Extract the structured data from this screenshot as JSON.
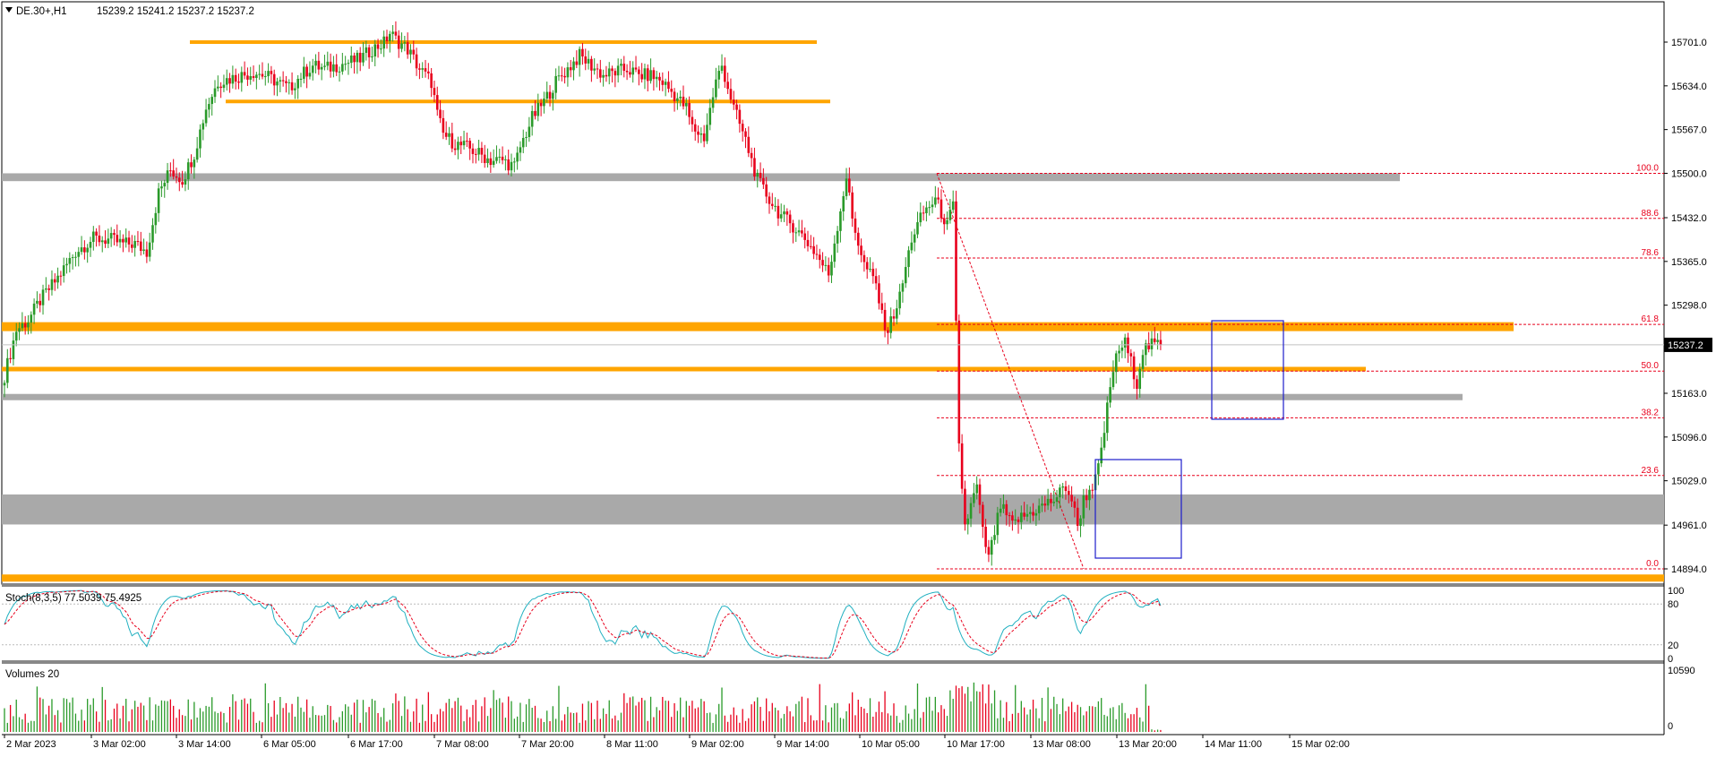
{
  "header": {
    "symbol": "DE.30+,H1",
    "ohlc": "15239.2 15241.2 15237.2 15237.2"
  },
  "price_panel": {
    "y_ticks": [
      "15701.0",
      "15634.0",
      "15567.0",
      "15500.0",
      "15432.0",
      "15365.0",
      "15298.0",
      "15163.0",
      "15096.0",
      "15029.0",
      "14961.0",
      "14894.0"
    ],
    "current_price": "15237.2",
    "fib_labels": [
      "100.0",
      "88.6",
      "78.6",
      "61.8",
      "50.0",
      "38.2",
      "23.6",
      "0.0"
    ]
  },
  "stoch_panel": {
    "label": "Stoch(8,3,5) 77.5039 75.4925",
    "y_ticks": [
      "100",
      "80",
      "20",
      "0"
    ]
  },
  "volume_panel": {
    "label": "Volumes 20",
    "y_ticks": [
      "10590",
      "0"
    ]
  },
  "x_axis": {
    "ticks": [
      "2 Mar 2023",
      "3 Mar 02:00",
      "3 Mar 14:00",
      "6 Mar 05:00",
      "6 Mar 17:00",
      "7 Mar 08:00",
      "7 Mar 20:00",
      "8 Mar 11:00",
      "9 Mar 02:00",
      "9 Mar 14:00",
      "10 Mar 05:00",
      "10 Mar 17:00",
      "13 Mar 08:00",
      "13 Mar 20:00",
      "14 Mar 11:00",
      "15 Mar 02:00"
    ]
  },
  "colors": {
    "bull": "#2a9a2a",
    "bear": "#e8001c",
    "orange_level": "#ffa500",
    "gray_zone": "#a9a9a9",
    "fib": "#e8001c",
    "box": "#1d1dcc",
    "stoch_main": "#20b0c0",
    "stoch_signal": "#e8001c"
  },
  "chart_data": {
    "type": "candlestick",
    "symbol": "DE.30+",
    "timeframe": "H1",
    "ylim": [
      14880,
      15770
    ],
    "current_price": 15237.2,
    "anchors": [
      [
        0,
        15190
      ],
      [
        4,
        15260
      ],
      [
        8,
        15275
      ],
      [
        12,
        15305
      ],
      [
        18,
        15340
      ],
      [
        24,
        15380
      ],
      [
        30,
        15400
      ],
      [
        36,
        15398
      ],
      [
        40,
        15392
      ],
      [
        44,
        15392
      ],
      [
        48,
        15380
      ],
      [
        52,
        15470
      ],
      [
        56,
        15505
      ],
      [
        60,
        15490
      ],
      [
        64,
        15530
      ],
      [
        68,
        15600
      ],
      [
        72,
        15640
      ],
      [
        76,
        15645
      ],
      [
        80,
        15650
      ],
      [
        84,
        15655
      ],
      [
        88,
        15650
      ],
      [
        92,
        15640
      ],
      [
        96,
        15630
      ],
      [
        100,
        15650
      ],
      [
        104,
        15665
      ],
      [
        108,
        15660
      ],
      [
        112,
        15665
      ],
      [
        116,
        15670
      ],
      [
        120,
        15675
      ],
      [
        124,
        15690
      ],
      [
        128,
        15700
      ],
      [
        130,
        15715
      ],
      [
        132,
        15705
      ],
      [
        136,
        15690
      ],
      [
        140,
        15660
      ],
      [
        144,
        15640
      ],
      [
        146,
        15590
      ],
      [
        148,
        15560
      ],
      [
        152,
        15545
      ],
      [
        156,
        15540
      ],
      [
        160,
        15530
      ],
      [
        164,
        15520
      ],
      [
        168,
        15520
      ],
      [
        172,
        15510
      ],
      [
        174,
        15540
      ],
      [
        178,
        15585
      ],
      [
        182,
        15610
      ],
      [
        186,
        15640
      ],
      [
        190,
        15660
      ],
      [
        194,
        15680
      ],
      [
        198,
        15665
      ],
      [
        202,
        15650
      ],
      [
        206,
        15655
      ],
      [
        210,
        15660
      ],
      [
        214,
        15650
      ],
      [
        218,
        15650
      ],
      [
        222,
        15640
      ],
      [
        226,
        15620
      ],
      [
        230,
        15600
      ],
      [
        232,
        15570
      ],
      [
        236,
        15555
      ],
      [
        240,
        15640
      ],
      [
        242,
        15665
      ],
      [
        246,
        15600
      ],
      [
        250,
        15550
      ],
      [
        254,
        15490
      ],
      [
        258,
        15460
      ],
      [
        262,
        15435
      ],
      [
        266,
        15420
      ],
      [
        270,
        15400
      ],
      [
        274,
        15375
      ],
      [
        278,
        15345
      ],
      [
        282,
        15445
      ],
      [
        284,
        15495
      ],
      [
        286,
        15430
      ],
      [
        290,
        15360
      ],
      [
        294,
        15330
      ],
      [
        296,
        15280
      ],
      [
        298,
        15260
      ],
      [
        302,
        15310
      ],
      [
        306,
        15400
      ],
      [
        310,
        15440
      ],
      [
        314,
        15460
      ],
      [
        318,
        15420
      ],
      [
        320,
        15450
      ],
      [
        322,
        15080
      ],
      [
        324,
        14960
      ],
      [
        326,
        14990
      ],
      [
        328,
        15020
      ],
      [
        330,
        14950
      ],
      [
        332,
        14910
      ],
      [
        336,
        14990
      ],
      [
        340,
        14960
      ],
      [
        342,
        14970
      ],
      [
        346,
        14980
      ],
      [
        350,
        14990
      ],
      [
        354,
        15000
      ],
      [
        358,
        15020
      ],
      [
        360,
        15000
      ],
      [
        362,
        14960
      ],
      [
        364,
        15000
      ],
      [
        368,
        15030
      ],
      [
        370,
        15070
      ],
      [
        372,
        15140
      ],
      [
        374,
        15200
      ],
      [
        376,
        15230
      ],
      [
        378,
        15240
      ],
      [
        380,
        15210
      ],
      [
        382,
        15180
      ],
      [
        384,
        15230
      ],
      [
        386,
        15235
      ],
      [
        388,
        15238
      ],
      [
        390,
        15237
      ]
    ],
    "bars": 391,
    "orange_levels": [
      15701.0,
      15610.0,
      15265.0,
      15200.0,
      14880.0
    ],
    "gray_zones": [
      [
        15488,
        15500
      ],
      [
        15155,
        15162
      ],
      [
        14962,
        15008
      ]
    ],
    "fibonacci": {
      "levels": [
        100.0,
        88.6,
        78.6,
        61.8,
        50.0,
        38.2,
        23.6,
        0.0
      ],
      "high": 15500.0,
      "low": 14894.0
    },
    "stochastic": {
      "k_period": 8,
      "d_period": 3,
      "slowing": 5,
      "main": 77.5039,
      "signal": 75.4925,
      "levels": [
        80,
        20
      ]
    },
    "volume": {
      "period": 20,
      "max": 10590
    }
  }
}
